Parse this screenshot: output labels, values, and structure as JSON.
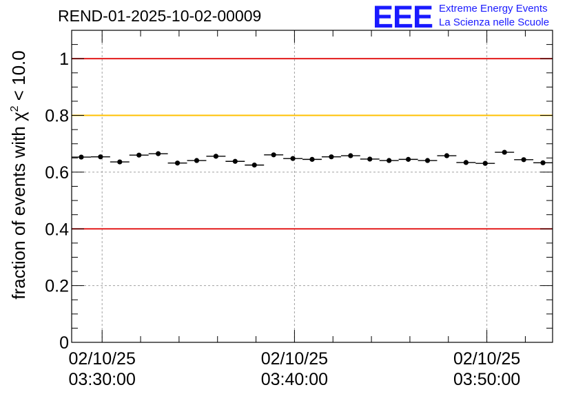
{
  "header": {
    "run_title": "REND-01-2025-10-02-00009",
    "logo_text": "EEE",
    "logo_line1": "Extreme Energy Events",
    "logo_line2": "La Scienza nelle Scuole"
  },
  "colors": {
    "limit_red": "#e31a1a",
    "limit_orange": "#ffc000",
    "logo_blue": "#1a1aff",
    "markers": "#000000",
    "grid": "#a0a0a0"
  },
  "chart_data": {
    "type": "scatter",
    "title": "REND-01-2025-10-02-00009",
    "xlabel": "",
    "ylabel": "fraction of events with χ² < 10.0",
    "ylabel_main": "fraction of events with χ",
    "ylabel_sup": "2",
    "ylabel_tail": " < 10.0",
    "ylim": [
      0,
      1.1
    ],
    "xlim": [
      "02/10/25 03:28:25",
      "02/10/25 03:53:25"
    ],
    "bin_width_seconds": 60,
    "yticks": [
      {
        "value": 0,
        "label": "0"
      },
      {
        "value": 0.2,
        "label": "0.2"
      },
      {
        "value": 0.4,
        "label": "0.4"
      },
      {
        "value": 0.6,
        "label": "0.6"
      },
      {
        "value": 0.8,
        "label": "0.8"
      },
      {
        "value": 1.0,
        "label": "1"
      }
    ],
    "xticks": [
      {
        "value": "02/10/25 03:30:00",
        "date": "02/10/25",
        "time": "03:30:00"
      },
      {
        "value": "02/10/25 03:40:00",
        "date": "02/10/25",
        "time": "03:40:00"
      },
      {
        "value": "02/10/25 03:50:00",
        "date": "02/10/25",
        "time": "03:50:00"
      }
    ],
    "grid": true,
    "reference_lines": [
      {
        "y": 1.0,
        "color": "#e31a1a"
      },
      {
        "y": 0.8,
        "color": "#ffc000"
      },
      {
        "y": 0.4,
        "color": "#e31a1a"
      }
    ],
    "series": [
      {
        "x": [
          "03:28:55",
          "03:29:55",
          "03:30:55",
          "03:31:55",
          "03:32:55",
          "03:33:55",
          "03:34:55",
          "03:35:55",
          "03:36:55",
          "03:37:55",
          "03:38:55",
          "03:39:55",
          "03:40:55",
          "03:41:55",
          "03:42:55",
          "03:43:55",
          "03:44:55",
          "03:45:55",
          "03:46:55",
          "03:47:55",
          "03:48:55",
          "03:49:55",
          "03:50:55",
          "03:51:55",
          "03:52:55"
        ],
        "y": [
          0.653,
          0.654,
          0.636,
          0.66,
          0.665,
          0.632,
          0.641,
          0.656,
          0.638,
          0.625,
          0.661,
          0.648,
          0.645,
          0.654,
          0.658,
          0.646,
          0.641,
          0.645,
          0.641,
          0.658,
          0.634,
          0.631,
          0.67,
          0.644,
          0.633
        ]
      }
    ]
  }
}
